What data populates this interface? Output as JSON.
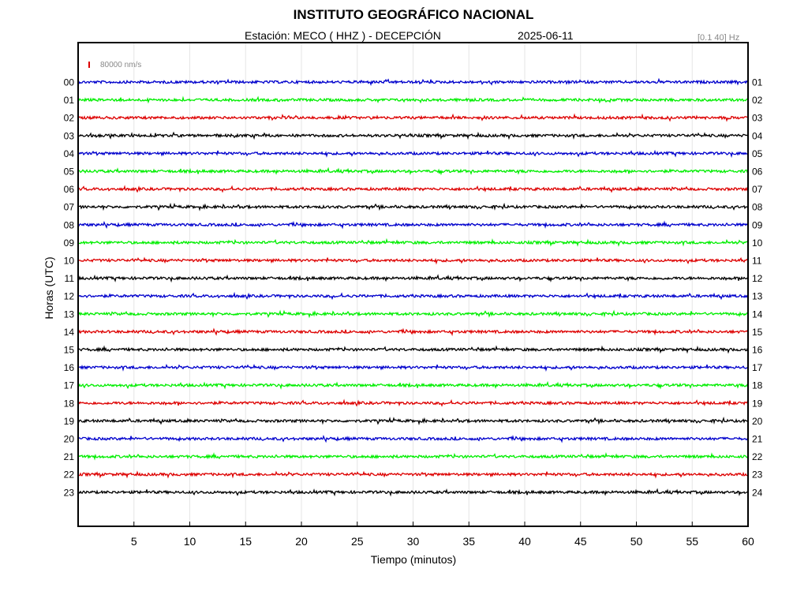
{
  "header": {
    "title": "INSTITUTO GEOGRÁFICO NACIONAL",
    "station_line": "Estación:  MECO ( HHZ ) - DECEPCIÓN",
    "date": "2025-06-11",
    "filter": "[0.1 40] Hz"
  },
  "colors": {
    "trace_cycle": [
      "#0000cc",
      "#00ee00",
      "#dd0000",
      "#000000"
    ],
    "scale_bar": "#dd0000",
    "grid": "#e6e6e6"
  },
  "chart_data": {
    "type": "line",
    "chart_kind": "helicorder seismogram",
    "title": "INSTITUTO GEOGRÁFICO NACIONAL",
    "xlabel": "Tiempo (minutos)",
    "ylabel": "Horas (UTC)",
    "xlim": [
      0,
      60
    ],
    "x_ticks": [
      5,
      10,
      15,
      20,
      25,
      30,
      35,
      40,
      45,
      50,
      55,
      60
    ],
    "grid": true,
    "scale_bar_label": "80000 nm/s",
    "left_hour_labels": [
      "00",
      "01",
      "02",
      "03",
      "04",
      "05",
      "06",
      "07",
      "08",
      "09",
      "10",
      "11",
      "12",
      "13",
      "14",
      "15",
      "16",
      "17",
      "18",
      "19",
      "20",
      "21",
      "22",
      "23"
    ],
    "right_hour_labels": [
      "01",
      "02",
      "03",
      "04",
      "05",
      "06",
      "07",
      "08",
      "09",
      "10",
      "11",
      "12",
      "13",
      "14",
      "15",
      "16",
      "17",
      "18",
      "19",
      "20",
      "21",
      "22",
      "23",
      "24"
    ],
    "series": [
      {
        "hour_start": "00",
        "color": "#0000cc"
      },
      {
        "hour_start": "01",
        "color": "#00ee00"
      },
      {
        "hour_start": "02",
        "color": "#dd0000"
      },
      {
        "hour_start": "03",
        "color": "#000000"
      },
      {
        "hour_start": "04",
        "color": "#0000cc"
      },
      {
        "hour_start": "05",
        "color": "#00ee00"
      },
      {
        "hour_start": "06",
        "color": "#dd0000"
      },
      {
        "hour_start": "07",
        "color": "#000000"
      },
      {
        "hour_start": "08",
        "color": "#0000cc"
      },
      {
        "hour_start": "09",
        "color": "#00ee00"
      },
      {
        "hour_start": "10",
        "color": "#dd0000"
      },
      {
        "hour_start": "11",
        "color": "#000000"
      },
      {
        "hour_start": "12",
        "color": "#0000cc"
      },
      {
        "hour_start": "13",
        "color": "#00ee00"
      },
      {
        "hour_start": "14",
        "color": "#dd0000"
      },
      {
        "hour_start": "15",
        "color": "#000000"
      },
      {
        "hour_start": "16",
        "color": "#0000cc"
      },
      {
        "hour_start": "17",
        "color": "#00ee00"
      },
      {
        "hour_start": "18",
        "color": "#dd0000"
      },
      {
        "hour_start": "19",
        "color": "#000000"
      },
      {
        "hour_start": "20",
        "color": "#0000cc"
      },
      {
        "hour_start": "21",
        "color": "#00ee00"
      },
      {
        "hour_start": "22",
        "color": "#dd0000"
      },
      {
        "hour_start": "23",
        "color": "#000000"
      }
    ]
  }
}
